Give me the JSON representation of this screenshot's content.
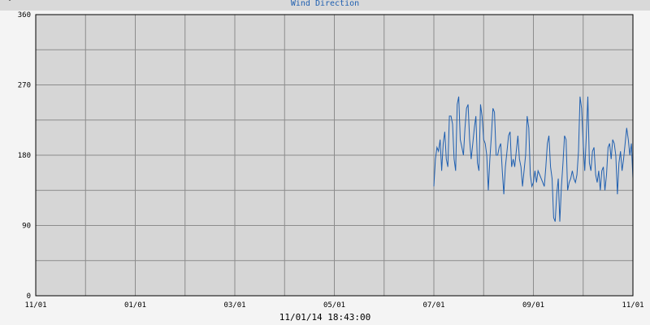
{
  "header": {
    "unit": "°",
    "title": "Wind Direction"
  },
  "footer": {
    "timestamp": "11/01/14 18:43:00"
  },
  "chart_data": {
    "type": "line",
    "title": "Wind Direction",
    "ylabel": "°",
    "ylim": [
      0,
      360
    ],
    "y_ticks": [
      0,
      90,
      180,
      270,
      360
    ],
    "x_tick_labels": [
      "11/01",
      "01/01",
      "03/01",
      "05/01",
      "07/01",
      "09/01",
      "11/01"
    ],
    "x_gridlines": 12,
    "grid": true,
    "series": [
      {
        "color": "#1f5fb0",
        "x_start": 8.0,
        "x_end": 12.0,
        "values": [
          140,
          175,
          190,
          185,
          200,
          160,
          195,
          210,
          175,
          165,
          230,
          230,
          220,
          175,
          160,
          245,
          255,
          200,
          190,
          180,
          215,
          240,
          245,
          200,
          175,
          195,
          215,
          230,
          170,
          160,
          245,
          230,
          200,
          195,
          180,
          135,
          175,
          205,
          240,
          235,
          180,
          180,
          190,
          195,
          160,
          130,
          165,
          185,
          205,
          210,
          165,
          175,
          165,
          185,
          205,
          175,
          165,
          140,
          160,
          180,
          230,
          215,
          155,
          140,
          145,
          160,
          145,
          160,
          155,
          150,
          145,
          140,
          165,
          195,
          205,
          165,
          150,
          100,
          95,
          130,
          150,
          95,
          140,
          170,
          205,
          200,
          135,
          145,
          150,
          160,
          150,
          145,
          155,
          185,
          255,
          240,
          195,
          160,
          205,
          255,
          170,
          160,
          185,
          190,
          155,
          145,
          160,
          135,
          160,
          165,
          135,
          155,
          190,
          195,
          175,
          200,
          195,
          180,
          130,
          170,
          185,
          160,
          175,
          195,
          215,
          200,
          180,
          195,
          150
        ]
      }
    ]
  }
}
